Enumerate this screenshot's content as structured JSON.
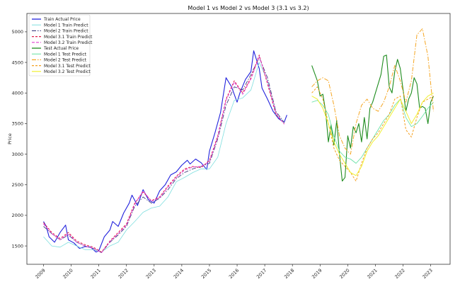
{
  "chart_data": {
    "type": "line",
    "title": "Model 1 vs Model 2 vs Model 3 (3.1 vs 3.2)",
    "xlabel": "",
    "ylabel": "Price",
    "xlim": [
      2008.4,
      2023.7
    ],
    "ylim": [
      1200,
      5300
    ],
    "xticks": [
      "2009",
      "2010",
      "2011",
      "2012",
      "2013",
      "2014",
      "2015",
      "2016",
      "2017",
      "2018",
      "2019",
      "2020",
      "2021",
      "2022",
      "2023"
    ],
    "yticks": [
      1500,
      2000,
      2500,
      3000,
      3500,
      4000,
      4500,
      5000
    ],
    "grid": false,
    "legend_position": "top-left",
    "series": [
      {
        "name": "Train Actual Price",
        "color": "#2222dd",
        "dash": "",
        "width": 1.1,
        "x": [
          2009.0,
          2009.1,
          2009.2,
          2009.4,
          2009.6,
          2009.8,
          2009.9,
          2010.1,
          2010.3,
          2010.5,
          2010.7,
          2010.9,
          2011.0,
          2011.2,
          2011.4,
          2011.5,
          2011.7,
          2011.9,
          2012.1,
          2012.2,
          2012.4,
          2012.6,
          2012.8,
          2013.0,
          2013.2,
          2013.4,
          2013.6,
          2013.8,
          2014.0,
          2014.2,
          2014.3,
          2014.5,
          2014.7,
          2014.9,
          2015.0,
          2015.2,
          2015.4,
          2015.6,
          2015.8,
          2016.0,
          2016.1,
          2016.3,
          2016.5,
          2016.6,
          2016.8,
          2016.9,
          2017.1,
          2017.3,
          2017.5,
          2017.7,
          2017.8
        ],
        "y": [
          1900,
          1820,
          1650,
          1560,
          1720,
          1840,
          1600,
          1550,
          1460,
          1490,
          1480,
          1400,
          1420,
          1650,
          1760,
          1900,
          1820,
          2040,
          2200,
          2330,
          2160,
          2420,
          2250,
          2200,
          2400,
          2500,
          2660,
          2710,
          2820,
          2900,
          2840,
          2920,
          2860,
          2750,
          3050,
          3350,
          3680,
          4250,
          4100,
          3850,
          4000,
          4220,
          4350,
          4690,
          4400,
          4080,
          3900,
          3700,
          3580,
          3520,
          3640
        ]
      },
      {
        "name": "Model 1 Train Predict",
        "color": "#7fdfdf",
        "dash": "",
        "width": 0.8,
        "x": [
          2009.0,
          2009.3,
          2009.6,
          2009.9,
          2010.2,
          2010.5,
          2010.8,
          2011.1,
          2011.4,
          2011.7,
          2012.0,
          2012.3,
          2012.6,
          2012.9,
          2013.2,
          2013.5,
          2013.8,
          2014.1,
          2014.4,
          2014.7,
          2015.0,
          2015.3,
          2015.6,
          2015.9,
          2016.2,
          2016.5,
          2016.8,
          2017.1,
          2017.4,
          2017.7
        ],
        "y": [
          1650,
          1500,
          1480,
          1560,
          1500,
          1440,
          1440,
          1400,
          1500,
          1560,
          1760,
          1900,
          2050,
          2120,
          2150,
          2300,
          2550,
          2620,
          2700,
          2760,
          2760,
          2950,
          3500,
          3880,
          3920,
          4050,
          4500,
          4200,
          3650,
          3520
        ]
      },
      {
        "name": "Model 2 Train Predict",
        "color": "#404080",
        "dash": "6,2,1.5,2",
        "width": 0.9,
        "x": [
          2009.0,
          2009.3,
          2009.6,
          2009.9,
          2010.2,
          2010.5,
          2010.8,
          2011.1,
          2011.4,
          2011.7,
          2012.0,
          2012.3,
          2012.6,
          2012.9,
          2013.2,
          2013.5,
          2013.8,
          2014.1,
          2014.4,
          2014.7,
          2015.0,
          2015.3,
          2015.6,
          2015.9,
          2016.2,
          2016.5,
          2016.8,
          2017.1,
          2017.4,
          2017.7
        ],
        "y": [
          1820,
          1700,
          1600,
          1680,
          1560,
          1500,
          1460,
          1390,
          1560,
          1680,
          1820,
          2150,
          2300,
          2200,
          2280,
          2420,
          2600,
          2700,
          2760,
          2800,
          2850,
          3250,
          3800,
          4100,
          4050,
          4300,
          4580,
          4250,
          3700,
          3520
        ]
      },
      {
        "name": "Model 3.1 Train Predict",
        "color": "#e0204a",
        "dash": "3,2",
        "width": 1.0,
        "x": [
          2009.0,
          2009.3,
          2009.6,
          2009.9,
          2010.2,
          2010.5,
          2010.8,
          2011.1,
          2011.4,
          2011.7,
          2012.0,
          2012.3,
          2012.6,
          2012.9,
          2013.2,
          2013.5,
          2013.8,
          2014.1,
          2014.4,
          2014.7,
          2015.0,
          2015.3,
          2015.6,
          2015.9,
          2016.2,
          2016.5,
          2016.8,
          2017.1,
          2017.4,
          2017.7
        ],
        "y": [
          1880,
          1720,
          1620,
          1720,
          1580,
          1520,
          1480,
          1400,
          1580,
          1720,
          1860,
          2200,
          2380,
          2240,
          2300,
          2480,
          2640,
          2760,
          2800,
          2780,
          2900,
          3300,
          3900,
          4200,
          4000,
          4250,
          4620,
          4150,
          3650,
          3500
        ]
      },
      {
        "name": "Model 3.2 Train Predict",
        "color": "#e040d0",
        "dash": "4,2",
        "width": 1.0,
        "x": [
          2009.0,
          2009.3,
          2009.6,
          2009.9,
          2010.2,
          2010.5,
          2010.8,
          2011.1,
          2011.4,
          2011.7,
          2012.0,
          2012.3,
          2012.6,
          2012.9,
          2013.2,
          2013.5,
          2013.8,
          2014.1,
          2014.4,
          2014.7,
          2015.0,
          2015.3,
          2015.6,
          2015.9,
          2016.2,
          2016.5,
          2016.8,
          2017.1,
          2017.4,
          2017.7
        ],
        "y": [
          1860,
          1700,
          1600,
          1700,
          1560,
          1500,
          1460,
          1390,
          1570,
          1700,
          1840,
          2180,
          2400,
          2230,
          2290,
          2460,
          2620,
          2740,
          2790,
          2800,
          2880,
          3280,
          3880,
          4180,
          3980,
          4230,
          4600,
          4180,
          3680,
          3490
        ]
      },
      {
        "name": "Test Actual Price",
        "color": "#1e8c1e",
        "dash": "",
        "width": 1.1,
        "x": [
          2018.7,
          2018.9,
          2019.0,
          2019.1,
          2019.2,
          2019.3,
          2019.4,
          2019.5,
          2019.6,
          2019.7,
          2019.8,
          2019.9,
          2020.0,
          2020.1,
          2020.2,
          2020.3,
          2020.4,
          2020.5,
          2020.6,
          2020.7,
          2020.8,
          2020.9,
          2021.0,
          2021.1,
          2021.2,
          2021.3,
          2021.4,
          2021.5,
          2021.6,
          2021.7,
          2021.8,
          2021.9,
          2022.0,
          2022.1,
          2022.2,
          2022.3,
          2022.4,
          2022.5,
          2022.6,
          2022.7,
          2022.8,
          2022.9,
          2023.0,
          2023.1
        ],
        "y": [
          4450,
          4200,
          3950,
          3980,
          3700,
          3200,
          3480,
          3150,
          3550,
          3000,
          2560,
          2620,
          3300,
          3100,
          3450,
          3350,
          3500,
          3200,
          3600,
          3250,
          3750,
          3850,
          4000,
          4150,
          4300,
          4600,
          4620,
          4100,
          4000,
          4350,
          4550,
          4400,
          4050,
          3700,
          3900,
          4000,
          4250,
          4150,
          3750,
          3780,
          3750,
          3500,
          3850,
          3950
        ]
      },
      {
        "name": "Model 1 Test Predict",
        "color": "#60e0a0",
        "dash": "",
        "width": 0.8,
        "x": [
          2018.7,
          2018.9,
          2019.1,
          2019.3,
          2019.5,
          2019.7,
          2019.9,
          2020.1,
          2020.3,
          2020.5,
          2020.7,
          2020.9,
          2021.1,
          2021.3,
          2021.5,
          2021.7,
          2021.9,
          2022.1,
          2022.3,
          2022.5,
          2022.7,
          2022.9,
          2023.1
        ],
        "y": [
          3850,
          3880,
          3800,
          3650,
          3300,
          3050,
          2950,
          2920,
          2850,
          2950,
          3100,
          3250,
          3400,
          3550,
          3650,
          3800,
          3900,
          3600,
          3450,
          3500,
          3620,
          3750,
          3850
        ]
      },
      {
        "name": "Model 2 Test Predict",
        "color": "#f5a623",
        "dash": "6,2,1.5,2",
        "width": 1.0,
        "x": [
          2018.7,
          2018.9,
          2019.1,
          2019.3,
          2019.5,
          2019.7,
          2019.9,
          2020.1,
          2020.3,
          2020.5,
          2020.7,
          2020.9,
          2021.1,
          2021.3,
          2021.5,
          2021.7,
          2021.9,
          2022.1,
          2022.3,
          2022.5,
          2022.7,
          2022.9,
          2023.1
        ],
        "y": [
          4100,
          4200,
          4250,
          4200,
          3800,
          3300,
          3100,
          3000,
          3500,
          3800,
          3900,
          3750,
          3700,
          3850,
          4100,
          4450,
          4200,
          3850,
          4200,
          4950,
          5050,
          4600,
          3700
        ]
      },
      {
        "name": "Model 3.1 Test Predict",
        "color": "#f5a020",
        "dash": "3,2",
        "width": 1.0,
        "x": [
          2018.7,
          2018.9,
          2019.1,
          2019.3,
          2019.5,
          2019.7,
          2019.9,
          2020.1,
          2020.3,
          2020.5,
          2020.7,
          2020.9,
          2021.1,
          2021.3,
          2021.5,
          2021.7,
          2021.9,
          2022.1,
          2022.3,
          2022.5,
          2022.7,
          2022.9,
          2023.1
        ],
        "y": [
          4000,
          4100,
          3900,
          3500,
          3100,
          2900,
          2800,
          2700,
          2560,
          2850,
          3100,
          3250,
          3350,
          3500,
          3650,
          3900,
          3950,
          3400,
          3280,
          3600,
          3850,
          3900,
          3950
        ]
      },
      {
        "name": "Model 3.2 Test Predict",
        "color": "#f0f030",
        "dash": "",
        "width": 1.0,
        "x": [
          2018.7,
          2018.9,
          2019.1,
          2019.3,
          2019.5,
          2019.7,
          2019.9,
          2020.1,
          2020.3,
          2020.5,
          2020.7,
          2020.9,
          2021.1,
          2021.3,
          2021.5,
          2021.7,
          2021.9,
          2022.1,
          2022.3,
          2022.5,
          2022.7,
          2022.9,
          2023.1
        ],
        "y": [
          3950,
          3900,
          3750,
          3500,
          3200,
          3000,
          2850,
          2700,
          2650,
          2800,
          3050,
          3200,
          3300,
          3450,
          3600,
          3750,
          3900,
          3700,
          3500,
          3650,
          3850,
          3950,
          4000
        ]
      }
    ]
  }
}
